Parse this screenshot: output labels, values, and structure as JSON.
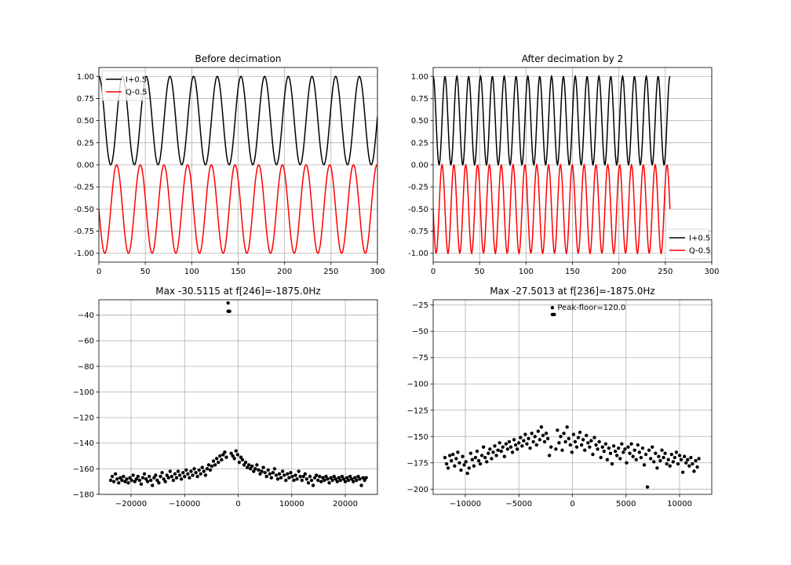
{
  "chart_data": [
    {
      "type": "line",
      "title": "Before decimation",
      "xlim": [
        0,
        300
      ],
      "ylim": [
        -1.1,
        1.1
      ],
      "grid": true,
      "legend_position": "upper-left",
      "xticks": [
        "0",
        "50",
        "100",
        "150",
        "200",
        "250",
        "300"
      ],
      "yticks": [
        "1.00",
        "0.75",
        "0.50",
        "0.25",
        "0.00",
        "-0.25",
        "-0.50",
        "-0.75",
        "-1.00"
      ],
      "series": [
        {
          "name": "I+0.5",
          "color": "#000000",
          "function": "0.5+0.5*sin(2*pi*n/25.5+pi/2)",
          "n_range": [
            0,
            300
          ]
        },
        {
          "name": "Q-0.5",
          "color": "#ff0000",
          "function": "-0.5+0.5*sin(2*pi*n/25.5+pi)",
          "n_range": [
            0,
            300
          ]
        }
      ]
    },
    {
      "type": "line",
      "title": "After decimation by 2",
      "xlim": [
        0,
        300
      ],
      "ylim": [
        -1.1,
        1.1
      ],
      "grid": true,
      "legend_position": "lower-right",
      "xticks": [
        "0",
        "50",
        "100",
        "150",
        "200",
        "250",
        "300"
      ],
      "yticks": [
        "1.00",
        "0.75",
        "0.50",
        "0.25",
        "0.00",
        "-0.25",
        "-0.50",
        "-0.75",
        "-1.00"
      ],
      "series": [
        {
          "name": "I+0.5",
          "color": "#000000",
          "function": "0.5+0.5*sin(2*pi*n/12.75+pi/2)",
          "n_range": [
            0,
            255
          ]
        },
        {
          "name": "Q-0.5",
          "color": "#ff0000",
          "function": "-0.5+0.5*sin(2*pi*n/12.75+pi)",
          "n_range": [
            0,
            255
          ]
        }
      ]
    },
    {
      "type": "scatter",
      "title": "Max -30.5115 at f[246]=-1875.0Hz",
      "xlim": [
        -26000,
        26000
      ],
      "ylim": [
        -180,
        -28
      ],
      "grid": true,
      "xticks": [
        "−20000",
        "−10000",
        "0",
        "10000",
        "20000"
      ],
      "yticks": [
        "−40",
        "−60",
        "−80",
        "−100",
        "−120",
        "−140",
        "−160",
        "−180"
      ],
      "points": [
        [
          -23800,
          -169
        ],
        [
          -23500,
          -166
        ],
        [
          -23200,
          -170
        ],
        [
          -22900,
          -164
        ],
        [
          -22600,
          -168
        ],
        [
          -22300,
          -171
        ],
        [
          -22000,
          -167
        ],
        [
          -21700,
          -169
        ],
        [
          -21400,
          -166
        ],
        [
          -21100,
          -170
        ],
        [
          -20800,
          -168
        ],
        [
          -20500,
          -171
        ],
        [
          -20200,
          -167
        ],
        [
          -19900,
          -169
        ],
        [
          -19600,
          -165
        ],
        [
          -19300,
          -170
        ],
        [
          -19000,
          -168
        ],
        [
          -18700,
          -166
        ],
        [
          -18400,
          -169
        ],
        [
          -18100,
          -172
        ],
        [
          -17800,
          -167
        ],
        [
          -17500,
          -164
        ],
        [
          -17200,
          -168
        ],
        [
          -16900,
          -170
        ],
        [
          -16600,
          -166
        ],
        [
          -16300,
          -169
        ],
        [
          -16000,
          -173
        ],
        [
          -15700,
          -167
        ],
        [
          -15400,
          -165
        ],
        [
          -15100,
          -169
        ],
        [
          -14800,
          -171
        ],
        [
          -14500,
          -166
        ],
        [
          -14200,
          -163
        ],
        [
          -13900,
          -168
        ],
        [
          -13600,
          -170
        ],
        [
          -13300,
          -165
        ],
        [
          -13000,
          -167
        ],
        [
          -12700,
          -162
        ],
        [
          -12400,
          -166
        ],
        [
          -12100,
          -169
        ],
        [
          -11800,
          -164
        ],
        [
          -11500,
          -167
        ],
        [
          -11200,
          -162
        ],
        [
          -10900,
          -165
        ],
        [
          -10600,
          -168
        ],
        [
          -10300,
          -163
        ],
        [
          -10000,
          -166
        ],
        [
          -9700,
          -161
        ],
        [
          -9400,
          -164
        ],
        [
          -9100,
          -167
        ],
        [
          -8800,
          -162
        ],
        [
          -8500,
          -165
        ],
        [
          -8200,
          -160
        ],
        [
          -7900,
          -163
        ],
        [
          -7600,
          -166
        ],
        [
          -7300,
          -161
        ],
        [
          -7000,
          -164
        ],
        [
          -6700,
          -159
        ],
        [
          -6400,
          -162
        ],
        [
          -6100,
          -165
        ],
        [
          -5800,
          -160
        ],
        [
          -5500,
          -157
        ],
        [
          -5200,
          -161
        ],
        [
          -4900,
          -158
        ],
        [
          -4600,
          -154
        ],
        [
          -4300,
          -157
        ],
        [
          -4000,
          -152
        ],
        [
          -3700,
          -155
        ],
        [
          -3400,
          -150
        ],
        [
          -3100,
          -153
        ],
        [
          -2800,
          -149
        ],
        [
          -2500,
          -147
        ],
        [
          -2200,
          -151
        ],
        [
          -1875,
          -30.5
        ],
        [
          -1875,
          -37
        ],
        [
          -1600,
          -37
        ],
        [
          -1300,
          -148
        ],
        [
          -1000,
          -150
        ],
        [
          -700,
          -152
        ],
        [
          -400,
          -146
        ],
        [
          -100,
          -149
        ],
        [
          200,
          -155
        ],
        [
          500,
          -151
        ],
        [
          800,
          -153
        ],
        [
          1100,
          -157
        ],
        [
          1400,
          -155
        ],
        [
          1700,
          -159
        ],
        [
          2000,
          -157
        ],
        [
          2300,
          -160
        ],
        [
          2600,
          -158
        ],
        [
          2900,
          -162
        ],
        [
          3200,
          -160
        ],
        [
          3500,
          -157
        ],
        [
          3800,
          -161
        ],
        [
          4100,
          -164
        ],
        [
          4400,
          -162
        ],
        [
          4700,
          -159
        ],
        [
          5000,
          -163
        ],
        [
          5300,
          -166
        ],
        [
          5600,
          -161
        ],
        [
          5900,
          -164
        ],
        [
          6200,
          -167
        ],
        [
          6500,
          -163
        ],
        [
          6800,
          -160
        ],
        [
          7100,
          -165
        ],
        [
          7400,
          -168
        ],
        [
          7700,
          -164
        ],
        [
          8000,
          -167
        ],
        [
          8300,
          -162
        ],
        [
          8600,
          -165
        ],
        [
          8900,
          -169
        ],
        [
          9200,
          -164
        ],
        [
          9500,
          -167
        ],
        [
          9800,
          -163
        ],
        [
          10100,
          -166
        ],
        [
          10400,
          -169
        ],
        [
          10700,
          -165
        ],
        [
          11000,
          -168
        ],
        [
          11300,
          -162
        ],
        [
          11600,
          -166
        ],
        [
          11900,
          -169
        ],
        [
          12200,
          -166
        ],
        [
          12500,
          -164
        ],
        [
          12800,
          -168
        ],
        [
          13100,
          -171
        ],
        [
          13400,
          -166
        ],
        [
          13700,
          -169
        ],
        [
          14000,
          -173
        ],
        [
          14300,
          -167
        ],
        [
          14600,
          -165
        ],
        [
          14900,
          -169
        ],
        [
          15200,
          -166
        ],
        [
          15500,
          -170
        ],
        [
          15800,
          -167
        ],
        [
          16100,
          -169
        ],
        [
          16400,
          -166
        ],
        [
          16700,
          -168
        ],
        [
          17000,
          -171
        ],
        [
          17300,
          -167
        ],
        [
          17600,
          -169
        ],
        [
          17900,
          -166
        ],
        [
          18200,
          -168
        ],
        [
          18500,
          -170
        ],
        [
          18800,
          -167
        ],
        [
          19100,
          -169
        ],
        [
          19400,
          -166
        ],
        [
          19700,
          -168
        ],
        [
          20000,
          -170
        ],
        [
          20300,
          -167
        ],
        [
          20600,
          -169
        ],
        [
          20900,
          -166
        ],
        [
          21200,
          -168
        ],
        [
          21500,
          -170
        ],
        [
          21800,
          -167
        ],
        [
          22100,
          -169
        ],
        [
          22400,
          -166
        ],
        [
          22700,
          -168
        ],
        [
          23000,
          -173
        ],
        [
          23300,
          -167
        ],
        [
          23600,
          -169
        ],
        [
          23900,
          -167
        ]
      ]
    },
    {
      "type": "scatter",
      "title": "Max -27.5013 at f[236]=-1875.0Hz",
      "xlim": [
        -13000,
        13000
      ],
      "ylim": [
        -205,
        -20
      ],
      "grid": true,
      "xticks": [
        "−10000",
        "−5000",
        "0",
        "5000",
        "10000"
      ],
      "yticks": [
        "−25",
        "−50",
        "−75",
        "−100",
        "−125",
        "−150",
        "−175",
        "−200"
      ],
      "annotation": {
        "text": "Peak-floor=120.0",
        "x": -1400,
        "y": -27
      },
      "points": [
        [
          -11900,
          -170
        ],
        [
          -11750,
          -176
        ],
        [
          -11600,
          -180
        ],
        [
          -11450,
          -168
        ],
        [
          -11300,
          -173
        ],
        [
          -11150,
          -167
        ],
        [
          -11000,
          -178
        ],
        [
          -10850,
          -171
        ],
        [
          -10700,
          -165
        ],
        [
          -10550,
          -175
        ],
        [
          -10400,
          -182
        ],
        [
          -10250,
          -169
        ],
        [
          -10100,
          -177
        ],
        [
          -9950,
          -174
        ],
        [
          -9800,
          -185
        ],
        [
          -9650,
          -180
        ],
        [
          -9500,
          -166
        ],
        [
          -9350,
          -172
        ],
        [
          -9200,
          -178
        ],
        [
          -9050,
          -170
        ],
        [
          -8900,
          -164
        ],
        [
          -8750,
          -173
        ],
        [
          -8600,
          -176
        ],
        [
          -8450,
          -168
        ],
        [
          -8300,
          -160
        ],
        [
          -8150,
          -170
        ],
        [
          -8000,
          -174
        ],
        [
          -7850,
          -166
        ],
        [
          -7700,
          -162
        ],
        [
          -7550,
          -171
        ],
        [
          -7400,
          -165
        ],
        [
          -7250,
          -159
        ],
        [
          -7100,
          -168
        ],
        [
          -6950,
          -163
        ],
        [
          -6800,
          -156
        ],
        [
          -6650,
          -164
        ],
        [
          -6500,
          -160
        ],
        [
          -6350,
          -169
        ],
        [
          -6200,
          -157
        ],
        [
          -6050,
          -162
        ],
        [
          -5900,
          -155
        ],
        [
          -5750,
          -160
        ],
        [
          -5600,
          -165
        ],
        [
          -5450,
          -153
        ],
        [
          -5300,
          -158
        ],
        [
          -5150,
          -162
        ],
        [
          -5000,
          -156
        ],
        [
          -4850,
          -151
        ],
        [
          -4700,
          -159
        ],
        [
          -4550,
          -154
        ],
        [
          -4400,
          -148
        ],
        [
          -4250,
          -157
        ],
        [
          -4100,
          -152
        ],
        [
          -3950,
          -161
        ],
        [
          -3800,
          -147
        ],
        [
          -3650,
          -155
        ],
        [
          -3500,
          -150
        ],
        [
          -3350,
          -158
        ],
        [
          -3200,
          -145
        ],
        [
          -3050,
          -153
        ],
        [
          -2900,
          -141
        ],
        [
          -2750,
          -149
        ],
        [
          -2600,
          -155
        ],
        [
          -2450,
          -147
        ],
        [
          -2300,
          -152
        ],
        [
          -2150,
          -168
        ],
        [
          -2000,
          -160
        ],
        [
          -1875,
          -27.5
        ],
        [
          -1875,
          -34
        ],
        [
          -1700,
          -34
        ],
        [
          -1550,
          -162
        ],
        [
          -1400,
          -144
        ],
        [
          -1250,
          -156
        ],
        [
          -1100,
          -150
        ],
        [
          -950,
          -163
        ],
        [
          -800,
          -147
        ],
        [
          -650,
          -155
        ],
        [
          -500,
          -141
        ],
        [
          -350,
          -152
        ],
        [
          -200,
          -158
        ],
        [
          -50,
          -165
        ],
        [
          100,
          -148
        ],
        [
          250,
          -155
        ],
        [
          400,
          -160
        ],
        [
          550,
          -151
        ],
        [
          700,
          -146
        ],
        [
          850,
          -158
        ],
        [
          1000,
          -153
        ],
        [
          1150,
          -163
        ],
        [
          1300,
          -149
        ],
        [
          1450,
          -156
        ],
        [
          1600,
          -160
        ],
        [
          1750,
          -154
        ],
        [
          1900,
          -167
        ],
        [
          2050,
          -151
        ],
        [
          2200,
          -158
        ],
        [
          2350,
          -162
        ],
        [
          2500,
          -155
        ],
        [
          2650,
          -170
        ],
        [
          2800,
          -160
        ],
        [
          2950,
          -164
        ],
        [
          3100,
          -157
        ],
        [
          3250,
          -172
        ],
        [
          3400,
          -161
        ],
        [
          3550,
          -166
        ],
        [
          3700,
          -176
        ],
        [
          3850,
          -159
        ],
        [
          4000,
          -164
        ],
        [
          4150,
          -168
        ],
        [
          4300,
          -161
        ],
        [
          4450,
          -171
        ],
        [
          4600,
          -157
        ],
        [
          4750,
          -165
        ],
        [
          4900,
          -162
        ],
        [
          5050,
          -175
        ],
        [
          5200,
          -160
        ],
        [
          5350,
          -166
        ],
        [
          5500,
          -157
        ],
        [
          5650,
          -169
        ],
        [
          5800,
          -163
        ],
        [
          5950,
          -172
        ],
        [
          6100,
          -158
        ],
        [
          6250,
          -165
        ],
        [
          6400,
          -170
        ],
        [
          6550,
          -161
        ],
        [
          6700,
          -177
        ],
        [
          6850,
          -167
        ],
        [
          7000,
          -198
        ],
        [
          7150,
          -163
        ],
        [
          7300,
          -171
        ],
        [
          7450,
          -160
        ],
        [
          7600,
          -174
        ],
        [
          7750,
          -166
        ],
        [
          7900,
          -180
        ],
        [
          8050,
          -169
        ],
        [
          8200,
          -173
        ],
        [
          8350,
          -163
        ],
        [
          8500,
          -170
        ],
        [
          8650,
          -166
        ],
        [
          8800,
          -176
        ],
        [
          8950,
          -172
        ],
        [
          9100,
          -178
        ],
        [
          9250,
          -167
        ],
        [
          9400,
          -174
        ],
        [
          9550,
          -170
        ],
        [
          9700,
          -165
        ],
        [
          9850,
          -176
        ],
        [
          10000,
          -168
        ],
        [
          10150,
          -172
        ],
        [
          10300,
          -184
        ],
        [
          10450,
          -169
        ],
        [
          10600,
          -175
        ],
        [
          10750,
          -172
        ],
        [
          10900,
          -178
        ],
        [
          11050,
          -170
        ],
        [
          11200,
          -176
        ],
        [
          11350,
          -183
        ],
        [
          11500,
          -173
        ],
        [
          11650,
          -179
        ],
        [
          11800,
          -171
        ]
      ]
    }
  ]
}
